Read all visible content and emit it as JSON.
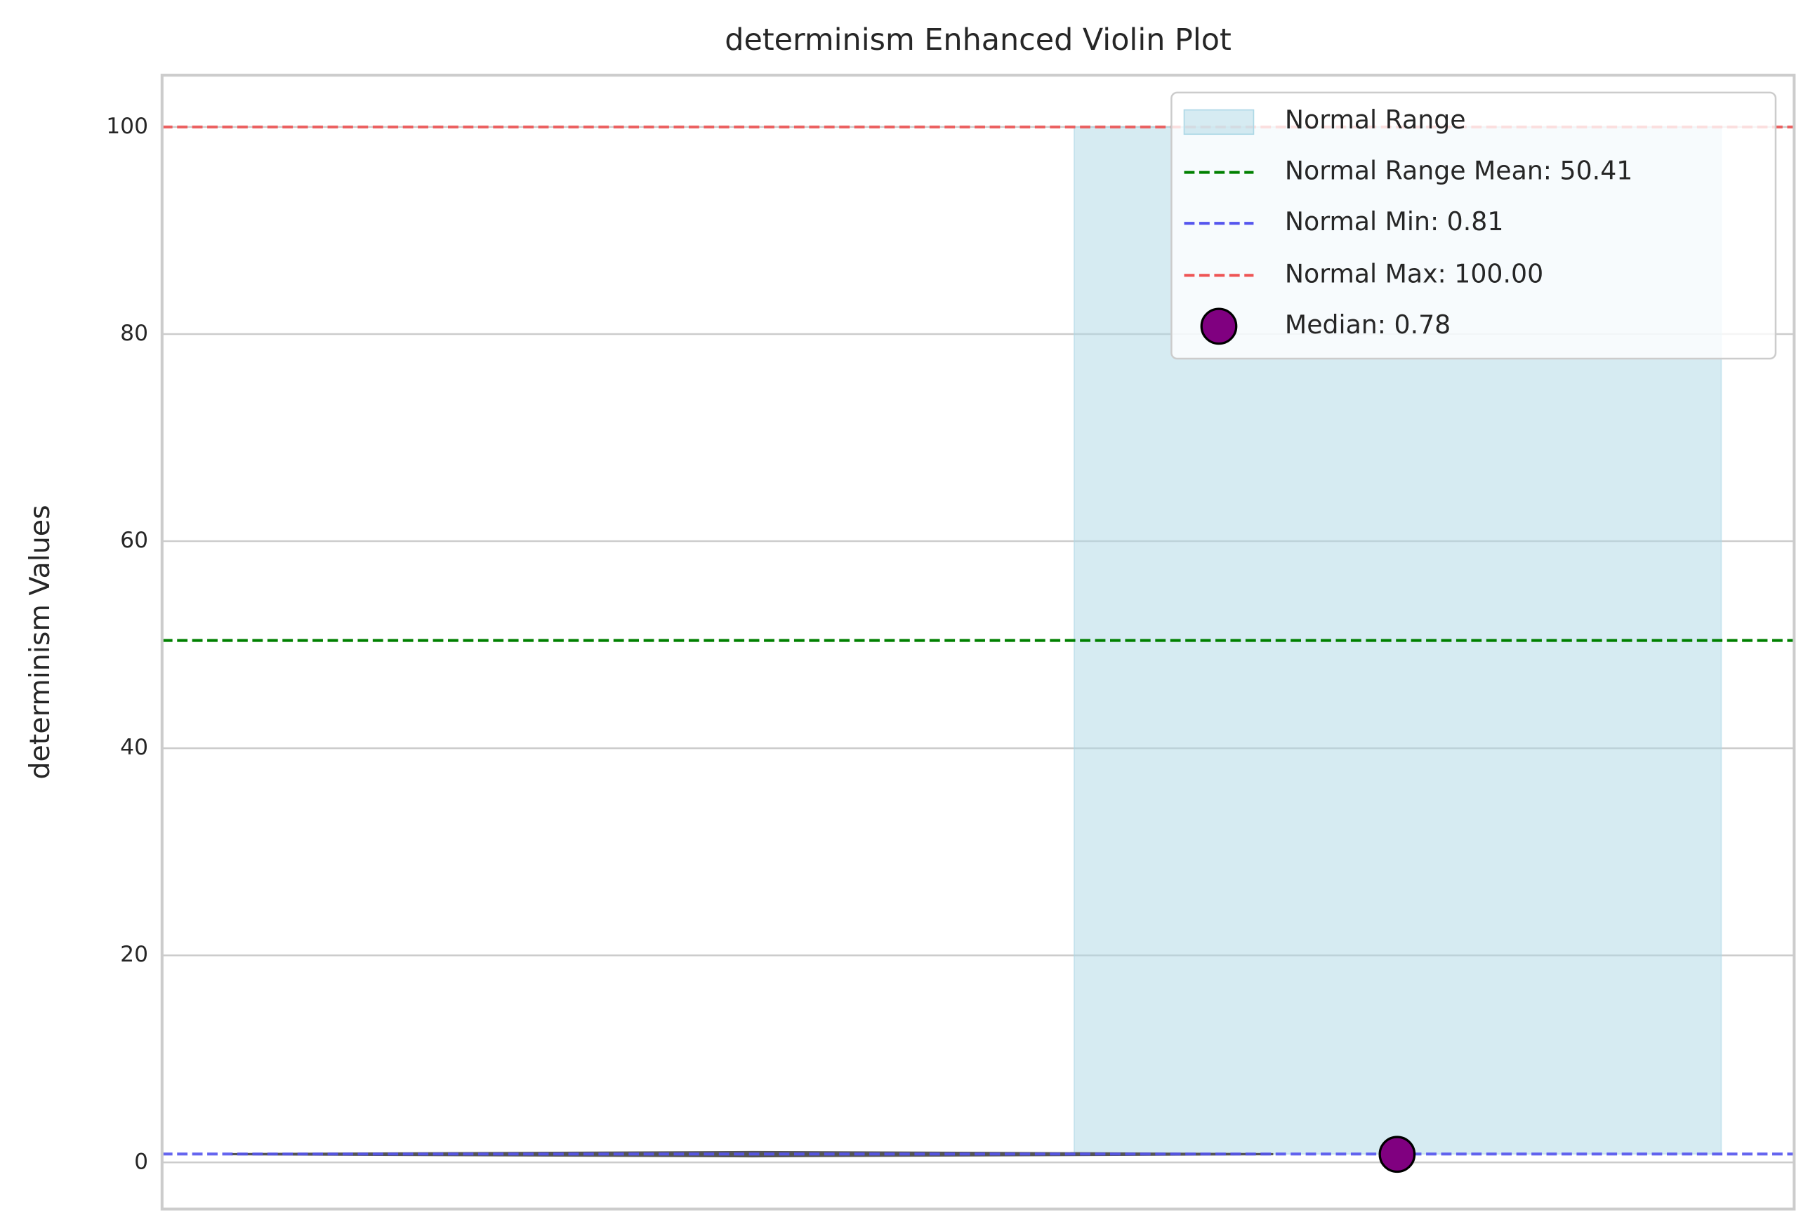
{
  "chart_data": {
    "type": "violin",
    "title": "determinism Enhanced Violin Plot",
    "y_label": "determinism Values",
    "ylim": [
      -4.5,
      105
    ],
    "yticks": [
      0,
      20,
      40,
      60,
      80,
      100
    ],
    "grid": true,
    "violin_range": [
      0.6,
      1.0
    ],
    "violin_color": "#555555",
    "normal_range": {
      "name": "Normal Range",
      "values": [
        0.81,
        100
      ],
      "color": "#add8e6"
    },
    "reference_lines": [
      {
        "name": "Normal Range Mean: 50.41",
        "value": 50.41,
        "color": "#008000"
      },
      {
        "name": "Normal Min: 0.81",
        "value": 0.81,
        "color": "#5555ee"
      },
      {
        "name": "Normal Max: 100.00",
        "value": 100,
        "color": "#ee5555"
      }
    ],
    "median": {
      "name": "Median: 0.78",
      "value": 0.78,
      "color": "#800080"
    },
    "legend": "upper right"
  }
}
